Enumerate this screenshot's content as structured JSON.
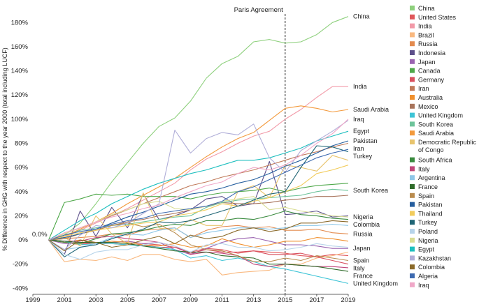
{
  "chart_data": {
    "type": "line",
    "xlabel": "",
    "ylabel": "% Difference in GHG with respect to the year 2000 (total including LUCF)",
    "xlim": [
      1999,
      2019
    ],
    "ylim": [
      -45,
      190
    ],
    "x_ticks": [
      "1999",
      "2001",
      "2003",
      "2005",
      "2007",
      "2009",
      "2011",
      "2013",
      "2015",
      "2017",
      "2019"
    ],
    "y_ticks": [
      "180%",
      "160%",
      "140%",
      "120%",
      "100%",
      "80%",
      "60%",
      "40%",
      "20%",
      "0%",
      "-20%",
      "-40%"
    ],
    "y_tick_values": [
      180,
      160,
      140,
      120,
      100,
      80,
      60,
      40,
      20,
      0,
      -20,
      -40
    ],
    "baseline_label": "0.0%",
    "annotation": {
      "label": "Paris Agreement",
      "x": 2015
    },
    "x": [
      2000,
      2001,
      2002,
      2003,
      2004,
      2005,
      2006,
      2007,
      2008,
      2009,
      2010,
      2011,
      2012,
      2013,
      2014,
      2015,
      2016,
      2017,
      2018,
      2019
    ],
    "series": [
      {
        "name": "China",
        "color": "#8ed07d",
        "end_label": "China",
        "values": [
          0,
          4,
          14,
          30,
          48,
          64,
          80,
          94,
          101,
          115,
          134,
          146,
          152,
          164,
          166,
          163,
          164,
          170,
          180,
          185
        ]
      },
      {
        "name": "United States",
        "color": "#e0575a",
        "values": [
          0,
          -2,
          -4,
          -2,
          -2,
          -1,
          -3,
          -4,
          -6,
          -10,
          -7,
          -8,
          -11,
          -9,
          -10,
          -11,
          -13,
          -14,
          -12,
          -13
        ]
      },
      {
        "name": "India",
        "color": "#f29aa8",
        "end_label": "India",
        "values": [
          0,
          3,
          8,
          14,
          20,
          26,
          33,
          40,
          47,
          58,
          67,
          73,
          80,
          86,
          90,
          100,
          108,
          118,
          127,
          127
        ]
      },
      {
        "name": "Brazil",
        "color": "#f9b980",
        "values": [
          0,
          -18,
          -16,
          -17,
          -14,
          -17,
          -12,
          -12,
          -16,
          -18,
          -16,
          -29,
          -27,
          -26,
          -25,
          -20,
          -20,
          -15,
          -13,
          -10
        ]
      },
      {
        "name": "Russia",
        "color": "#e38b4f",
        "end_label": "Russia",
        "values": [
          0,
          1,
          2,
          3,
          5,
          4,
          8,
          9,
          10,
          2,
          8,
          11,
          12,
          10,
          11,
          8,
          8,
          9,
          6,
          5
        ]
      },
      {
        "name": "Indonesia",
        "color": "#5c4f8a",
        "values": [
          0,
          -12,
          24,
          3,
          27,
          10,
          38,
          17,
          20,
          25,
          34,
          36,
          28,
          30,
          65,
          21,
          22,
          24,
          19,
          20
        ]
      },
      {
        "name": "Japan",
        "color": "#9a63b0",
        "end_label": "Japan",
        "values": [
          0,
          -3,
          -2,
          -2,
          -2,
          -1,
          -3,
          -2,
          -8,
          -12,
          -7,
          -2,
          1,
          2,
          -1,
          -4,
          -4,
          -5,
          -7,
          -7
        ]
      },
      {
        "name": "Canada",
        "color": "#4fa84a",
        "values": [
          0,
          31,
          34,
          38,
          37,
          38,
          36,
          36,
          36,
          34,
          37,
          39,
          40,
          41,
          43,
          40,
          43,
          45,
          46,
          47
        ]
      },
      {
        "name": "Germany",
        "color": "#d9505f",
        "values": [
          0,
          -1,
          -3,
          -2,
          -3,
          -4,
          -4,
          -6,
          -6,
          -11,
          -8,
          -10,
          -10,
          -9,
          -12,
          -12,
          -11,
          -14,
          -17,
          -20
        ]
      },
      {
        "name": "Iran",
        "color": "#c07a5a",
        "end_label": "Iran",
        "values": [
          0,
          5,
          10,
          15,
          20,
          25,
          30,
          35,
          40,
          45,
          48,
          52,
          55,
          58,
          62,
          66,
          70,
          73,
          77,
          80
        ]
      },
      {
        "name": "Australia",
        "color": "#f0902e",
        "values": [
          0,
          -2,
          0,
          -3,
          -1,
          -2,
          -4,
          -5,
          -3,
          -6,
          -5,
          1,
          -3,
          -6,
          -4,
          -1,
          -1,
          2,
          1,
          -1
        ]
      },
      {
        "name": "Mexico",
        "color": "#a8745c",
        "values": [
          0,
          2,
          5,
          8,
          12,
          15,
          17,
          20,
          22,
          25,
          28,
          31,
          30,
          30,
          31,
          33,
          34,
          36,
          36,
          37
        ]
      },
      {
        "name": "United Kingdom",
        "color": "#3ec4d6",
        "end_label": "United Kingdom",
        "values": [
          0,
          -1,
          -4,
          -3,
          -3,
          -4,
          -5,
          -6,
          -8,
          -15,
          -13,
          -17,
          -15,
          -18,
          -22,
          -24,
          -27,
          -30,
          -33,
          -36
        ]
      },
      {
        "name": "South Korea",
        "color": "#6dc39a",
        "end_label": "South Korea",
        "values": [
          0,
          4,
          8,
          10,
          12,
          13,
          15,
          17,
          19,
          20,
          27,
          31,
          33,
          34,
          35,
          36,
          37,
          40,
          42,
          41
        ]
      },
      {
        "name": "Saudi Arabia",
        "color": "#f39a3d",
        "end_label": "Saudi Arabia",
        "values": [
          0,
          3,
          9,
          15,
          22,
          30,
          37,
          44,
          51,
          60,
          69,
          77,
          84,
          89,
          99,
          109,
          111,
          109,
          106,
          108
        ]
      },
      {
        "name": "Democratic Republic of Congo",
        "color": "#e8c46d",
        "values": [
          0,
          2,
          -5,
          20,
          5,
          -3,
          39,
          10,
          8,
          17,
          12,
          12,
          40,
          45,
          35,
          62,
          60,
          57,
          70,
          66
        ]
      },
      {
        "name": "South Africa",
        "color": "#3a8b3f",
        "values": [
          0,
          -2,
          -3,
          1,
          5,
          6,
          8,
          11,
          13,
          12,
          16,
          16,
          18,
          17,
          20,
          24,
          21,
          20,
          18,
          17
        ]
      },
      {
        "name": "Italy",
        "color": "#c0477a",
        "end_label": "Italy",
        "values": [
          0,
          -1,
          -1,
          2,
          3,
          1,
          0,
          -2,
          -5,
          -12,
          -10,
          -11,
          -13,
          -20,
          -22,
          -20,
          -21,
          -22,
          -22,
          -23
        ]
      },
      {
        "name": "Argentina",
        "color": "#8ec7e8",
        "values": [
          0,
          -8,
          -6,
          -3,
          2,
          5,
          4,
          8,
          10,
          2,
          6,
          8,
          10,
          10,
          9,
          10,
          12,
          12,
          13,
          12
        ]
      },
      {
        "name": "France",
        "color": "#2f6b2a",
        "end_label": "France",
        "values": [
          0,
          -1,
          -2,
          -2,
          -2,
          -3,
          -5,
          -7,
          -9,
          -10,
          -10,
          -13,
          -14,
          -15,
          -20,
          -20,
          -21,
          -22,
          -24,
          -26
        ]
      },
      {
        "name": "Spain",
        "color": "#b98b4e",
        "end_label": "Spain",
        "values": [
          0,
          1,
          5,
          8,
          12,
          14,
          11,
          13,
          6,
          -4,
          -8,
          -9,
          -13,
          -18,
          -18,
          -15,
          -17,
          -13,
          -15,
          -17
        ]
      },
      {
        "name": "Pakistan",
        "color": "#255e9e",
        "end_label": "Pakistan",
        "values": [
          0,
          2,
          5,
          9,
          14,
          19,
          23,
          28,
          33,
          38,
          40,
          43,
          47,
          50,
          55,
          61,
          66,
          72,
          78,
          82
        ]
      },
      {
        "name": "Thailand",
        "color": "#f2cc5c",
        "values": [
          0,
          3,
          6,
          8,
          10,
          12,
          14,
          15,
          20,
          22,
          25,
          30,
          28,
          32,
          35,
          40,
          45,
          55,
          58,
          62
        ]
      },
      {
        "name": "Turkey",
        "color": "#1f6575",
        "end_label": "Turkey",
        "values": [
          0,
          -14,
          -6,
          -4,
          1,
          5,
          9,
          15,
          14,
          16,
          20,
          24,
          28,
          33,
          38,
          40,
          60,
          78,
          77,
          73
        ]
      },
      {
        "name": "Poland",
        "color": "#b7d4ea",
        "values": [
          0,
          -12,
          -16,
          -10,
          -8,
          -8,
          -4,
          -2,
          -5,
          -10,
          -4,
          -3,
          -6,
          -6,
          -9,
          -8,
          -6,
          -3,
          -5,
          -6
        ]
      },
      {
        "name": "Nigeria",
        "color": "#d9dd94",
        "end_label": "Nigeria",
        "values": [
          0,
          5,
          10,
          15,
          21,
          25,
          30,
          32,
          26,
          25,
          28,
          32,
          34,
          36,
          25,
          27,
          24,
          22,
          20,
          19
        ]
      },
      {
        "name": "Egypt",
        "color": "#1ebfbf",
        "end_label": "Egypt",
        "values": [
          0,
          8,
          16,
          22,
          30,
          36,
          42,
          47,
          51,
          55,
          58,
          62,
          66,
          66,
          68,
          72,
          76,
          82,
          86,
          90
        ]
      },
      {
        "name": "Kazakhstan",
        "color": "#b0aed8",
        "values": [
          0,
          -8,
          4,
          12,
          10,
          14,
          22,
          30,
          91,
          72,
          84,
          89,
          87,
          96,
          68,
          56,
          74,
          82,
          90,
          99
        ]
      },
      {
        "name": "Colombia",
        "color": "#8b6a2a",
        "end_label": "Colombia",
        "values": [
          0,
          -9,
          0,
          -2,
          -6,
          -4,
          0,
          3,
          -3,
          4,
          1,
          3,
          8,
          10,
          7,
          9,
          14,
          14,
          16,
          15
        ]
      },
      {
        "name": "Algeria",
        "color": "#3d6ab0",
        "values": [
          0,
          4,
          7,
          9,
          13,
          16,
          18,
          22,
          24,
          26,
          28,
          32,
          40,
          44,
          50,
          56,
          62,
          68,
          72,
          75
        ]
      },
      {
        "name": "Iraq",
        "color": "#f0a8c8",
        "end_label": "Iraq",
        "values": [
          0,
          6,
          10,
          15,
          19,
          22,
          26,
          29,
          35,
          40,
          45,
          48,
          55,
          60,
          58,
          62,
          70,
          80,
          88,
          100
        ]
      }
    ]
  }
}
